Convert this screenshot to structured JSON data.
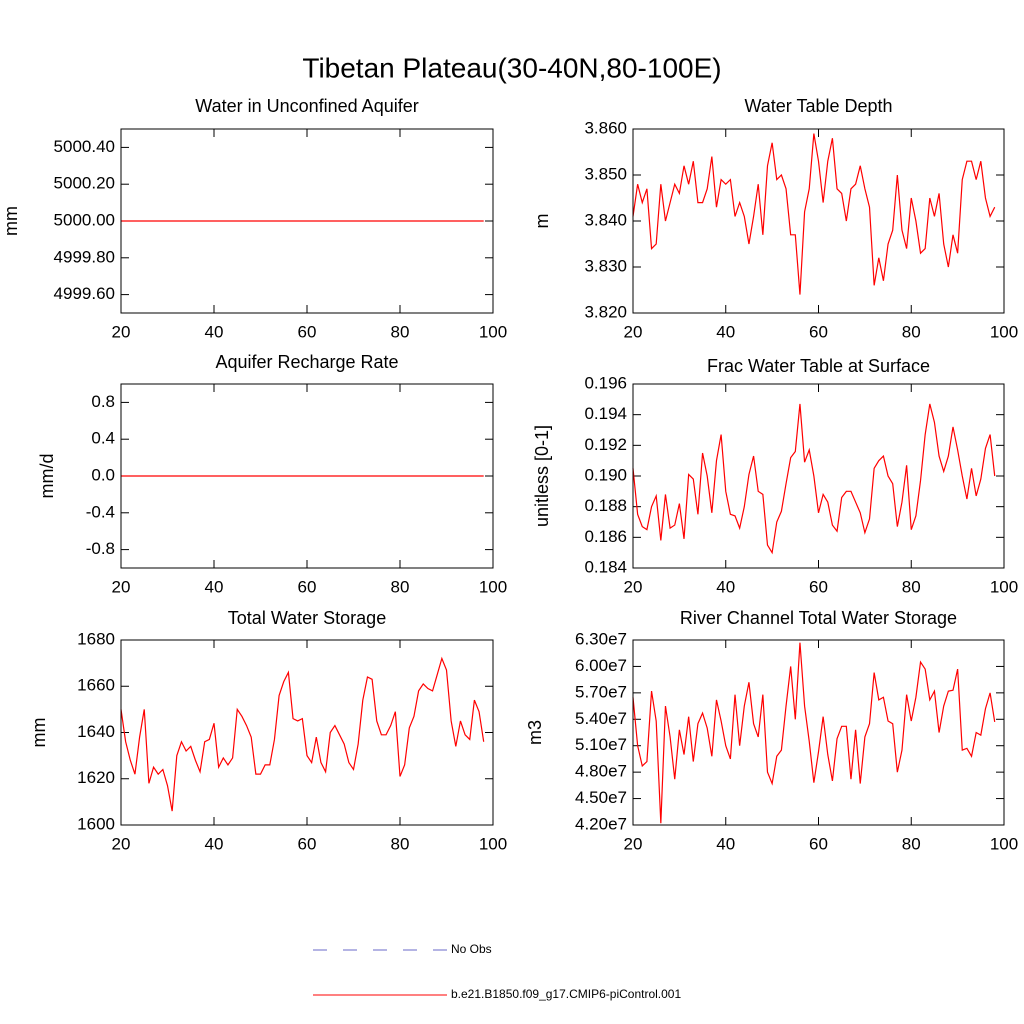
{
  "title": "Tibetan Plateau(30-40N,80-100E)",
  "legend": [
    {
      "name": "No Obs",
      "color": "#6a6ac8",
      "dash": true
    },
    {
      "name": "b.e21.B1850.f09_g17.CMIP6-piControl.001",
      "color": "#ff0000",
      "dash": false
    }
  ],
  "chart_data": [
    {
      "type": "line",
      "title": "Water in Unconfined Aquifer",
      "ylabel": "mm",
      "x": [
        20,
        21,
        22,
        23,
        24,
        25,
        26,
        27,
        28,
        29,
        30,
        31,
        32,
        33,
        34,
        35,
        36,
        37,
        38,
        39,
        40,
        41,
        42,
        43,
        44,
        45,
        46,
        47,
        48,
        49,
        50,
        51,
        52,
        53,
        54,
        55,
        56,
        57,
        58,
        59,
        60,
        61,
        62,
        63,
        64,
        65,
        66,
        67,
        68,
        69,
        70,
        71,
        72,
        73,
        74,
        75,
        76,
        77,
        78,
        79,
        80,
        81,
        82,
        83,
        84,
        85,
        86,
        87,
        88,
        89,
        90,
        91,
        92,
        93,
        94,
        95,
        96,
        97,
        98
      ],
      "series": [
        {
          "color": "#ff0000",
          "values": [
            5000,
            5000,
            5000,
            5000,
            5000,
            5000,
            5000,
            5000,
            5000,
            5000,
            5000,
            5000,
            5000,
            5000,
            5000,
            5000,
            5000,
            5000,
            5000,
            5000,
            5000,
            5000,
            5000,
            5000,
            5000,
            5000,
            5000,
            5000,
            5000,
            5000,
            5000,
            5000,
            5000,
            5000,
            5000,
            5000,
            5000,
            5000,
            5000,
            5000,
            5000,
            5000,
            5000,
            5000,
            5000,
            5000,
            5000,
            5000,
            5000,
            5000,
            5000,
            5000,
            5000,
            5000,
            5000,
            5000,
            5000,
            5000,
            5000,
            5000,
            5000,
            5000,
            5000,
            5000,
            5000,
            5000,
            5000,
            5000,
            5000,
            5000,
            5000,
            5000,
            5000,
            5000,
            5000,
            5000,
            5000,
            5000,
            5000
          ]
        }
      ],
      "xlim": [
        20,
        100
      ],
      "xticks": [
        20,
        40,
        60,
        80,
        100
      ],
      "ylim": [
        4999.5,
        5000.5
      ],
      "yticks": [
        {
          "value": 4999.6,
          "label": "4999.60"
        },
        {
          "value": 4999.8,
          "label": "4999.80"
        },
        {
          "value": 5000,
          "label": "5000.00"
        },
        {
          "value": 5000.2,
          "label": "5000.20"
        },
        {
          "value": 5000.4,
          "label": "5000.40"
        }
      ]
    },
    {
      "type": "line",
      "title": "Water Table Depth",
      "ylabel": "m",
      "x": [
        20,
        21,
        22,
        23,
        24,
        25,
        26,
        27,
        28,
        29,
        30,
        31,
        32,
        33,
        34,
        35,
        36,
        37,
        38,
        39,
        40,
        41,
        42,
        43,
        44,
        45,
        46,
        47,
        48,
        49,
        50,
        51,
        52,
        53,
        54,
        55,
        56,
        57,
        58,
        59,
        60,
        61,
        62,
        63,
        64,
        65,
        66,
        67,
        68,
        69,
        70,
        71,
        72,
        73,
        74,
        75,
        76,
        77,
        78,
        79,
        80,
        81,
        82,
        83,
        84,
        85,
        86,
        87,
        88,
        89,
        90,
        91,
        92,
        93,
        94,
        95,
        96,
        97,
        98
      ],
      "series": [
        {
          "color": "#ff0000",
          "values": [
            3.841,
            3.848,
            3.844,
            3.847,
            3.834,
            3.835,
            3.848,
            3.84,
            3.844,
            3.848,
            3.846,
            3.852,
            3.848,
            3.853,
            3.844,
            3.844,
            3.847,
            3.854,
            3.843,
            3.849,
            3.848,
            3.849,
            3.841,
            3.844,
            3.841,
            3.835,
            3.841,
            3.848,
            3.837,
            3.852,
            3.857,
            3.849,
            3.85,
            3.847,
            3.837,
            3.837,
            3.824,
            3.842,
            3.847,
            3.859,
            3.853,
            3.844,
            3.853,
            3.858,
            3.847,
            3.846,
            3.84,
            3.847,
            3.848,
            3.852,
            3.847,
            3.843,
            3.826,
            3.832,
            3.827,
            3.835,
            3.838,
            3.85,
            3.838,
            3.834,
            3.845,
            3.84,
            3.833,
            3.834,
            3.845,
            3.841,
            3.846,
            3.835,
            3.83,
            3.837,
            3.833,
            3.849,
            3.853,
            3.853,
            3.849,
            3.853,
            3.845,
            3.841,
            3.843
          ]
        }
      ],
      "xlim": [
        20,
        100
      ],
      "xticks": [
        20,
        40,
        60,
        80,
        100
      ],
      "ylim": [
        3.82,
        3.86
      ],
      "yticks": [
        {
          "value": 3.82,
          "label": "3.820"
        },
        {
          "value": 3.83,
          "label": "3.830"
        },
        {
          "value": 3.84,
          "label": "3.840"
        },
        {
          "value": 3.85,
          "label": "3.850"
        },
        {
          "value": 3.86,
          "label": "3.860"
        }
      ]
    },
    {
      "type": "line",
      "title": "Aquifer Recharge Rate",
      "ylabel": "mm/d",
      "x": [
        20,
        21,
        22,
        23,
        24,
        25,
        26,
        27,
        28,
        29,
        30,
        31,
        32,
        33,
        34,
        35,
        36,
        37,
        38,
        39,
        40,
        41,
        42,
        43,
        44,
        45,
        46,
        47,
        48,
        49,
        50,
        51,
        52,
        53,
        54,
        55,
        56,
        57,
        58,
        59,
        60,
        61,
        62,
        63,
        64,
        65,
        66,
        67,
        68,
        69,
        70,
        71,
        72,
        73,
        74,
        75,
        76,
        77,
        78,
        79,
        80,
        81,
        82,
        83,
        84,
        85,
        86,
        87,
        88,
        89,
        90,
        91,
        92,
        93,
        94,
        95,
        96,
        97,
        98
      ],
      "series": [
        {
          "color": "#ff0000",
          "values": [
            0,
            0,
            0,
            0,
            0,
            0,
            0,
            0,
            0,
            0,
            0,
            0,
            0,
            0,
            0,
            0,
            0,
            0,
            0,
            0,
            0,
            0,
            0,
            0,
            0,
            0,
            0,
            0,
            0,
            0,
            0,
            0,
            0,
            0,
            0,
            0,
            0,
            0,
            0,
            0,
            0,
            0,
            0,
            0,
            0,
            0,
            0,
            0,
            0,
            0,
            0,
            0,
            0,
            0,
            0,
            0,
            0,
            0,
            0,
            0,
            0,
            0,
            0,
            0,
            0,
            0,
            0,
            0,
            0,
            0,
            0,
            0,
            0,
            0,
            0,
            0,
            0,
            0,
            0
          ]
        }
      ],
      "xlim": [
        20,
        100
      ],
      "xticks": [
        20,
        40,
        60,
        80,
        100
      ],
      "ylim": [
        -1,
        1
      ],
      "yticks": [
        -0.8,
        -0.4,
        {
          "value": 0,
          "label": "0.0"
        },
        0.4,
        0.8
      ]
    },
    {
      "type": "line",
      "title": "Frac Water Table at Surface",
      "ylabel": "unitless [0-1]",
      "x": [
        20,
        21,
        22,
        23,
        24,
        25,
        26,
        27,
        28,
        29,
        30,
        31,
        32,
        33,
        34,
        35,
        36,
        37,
        38,
        39,
        40,
        41,
        42,
        43,
        44,
        45,
        46,
        47,
        48,
        49,
        50,
        51,
        52,
        53,
        54,
        55,
        56,
        57,
        58,
        59,
        60,
        61,
        62,
        63,
        64,
        65,
        66,
        67,
        68,
        69,
        70,
        71,
        72,
        73,
        74,
        75,
        76,
        77,
        78,
        79,
        80,
        81,
        82,
        83,
        84,
        85,
        86,
        87,
        88,
        89,
        90,
        91,
        92,
        93,
        94,
        95,
        96,
        97,
        98
      ],
      "series": [
        {
          "color": "#ff0000",
          "values": [
            0.1905,
            0.1875,
            0.1867,
            0.1865,
            0.188,
            0.1887,
            0.1858,
            0.1888,
            0.1866,
            0.1868,
            0.1882,
            0.1859,
            0.1901,
            0.1898,
            0.1875,
            0.1915,
            0.19,
            0.1876,
            0.191,
            0.1927,
            0.189,
            0.1875,
            0.1874,
            0.1866,
            0.188,
            0.1901,
            0.1913,
            0.189,
            0.1888,
            0.1855,
            0.185,
            0.187,
            0.1877,
            0.1895,
            0.1912,
            0.1916,
            0.1947,
            0.1909,
            0.1917,
            0.19,
            0.1876,
            0.1888,
            0.1883,
            0.1868,
            0.1864,
            0.1886,
            0.189,
            0.189,
            0.1883,
            0.1876,
            0.1863,
            0.1872,
            0.1905,
            0.191,
            0.1913,
            0.19,
            0.1895,
            0.1867,
            0.1883,
            0.1907,
            0.1865,
            0.1874,
            0.1897,
            0.1927,
            0.1947,
            0.1935,
            0.1913,
            0.1903,
            0.1913,
            0.1932,
            0.1917,
            0.19,
            0.1885,
            0.1905,
            0.1887,
            0.1898,
            0.1918,
            0.1927,
            0.19
          ]
        }
      ],
      "xlim": [
        20,
        100
      ],
      "xticks": [
        20,
        40,
        60,
        80,
        100
      ],
      "ylim": [
        0.184,
        0.196
      ],
      "yticks": [
        0.184,
        0.186,
        0.188,
        {
          "value": 0.19,
          "label": "0.190"
        },
        0.192,
        0.194,
        0.196
      ]
    },
    {
      "type": "line",
      "title": "Total Water Storage",
      "ylabel": "mm",
      "x": [
        20,
        21,
        22,
        23,
        24,
        25,
        26,
        27,
        28,
        29,
        30,
        31,
        32,
        33,
        34,
        35,
        36,
        37,
        38,
        39,
        40,
        41,
        42,
        43,
        44,
        45,
        46,
        47,
        48,
        49,
        50,
        51,
        52,
        53,
        54,
        55,
        56,
        57,
        58,
        59,
        60,
        61,
        62,
        63,
        64,
        65,
        66,
        67,
        68,
        69,
        70,
        71,
        72,
        73,
        74,
        75,
        76,
        77,
        78,
        79,
        80,
        81,
        82,
        83,
        84,
        85,
        86,
        87,
        88,
        89,
        90,
        91,
        92,
        93,
        94,
        95,
        96,
        97,
        98
      ],
      "series": [
        {
          "color": "#ff0000",
          "values": [
            1650,
            1636,
            1628,
            1622,
            1638,
            1650,
            1618,
            1625,
            1622,
            1624,
            1617,
            1606,
            1630,
            1636,
            1632,
            1634,
            1628,
            1623,
            1636,
            1637,
            1644,
            1625,
            1629,
            1626,
            1629,
            1650,
            1647,
            1643,
            1638,
            1622,
            1622,
            1626,
            1626,
            1637,
            1656,
            1662,
            1666,
            1646,
            1645,
            1646,
            1630,
            1627,
            1638,
            1627,
            1623,
            1640,
            1643,
            1639,
            1635,
            1627,
            1624,
            1635,
            1654,
            1664,
            1663,
            1645,
            1639,
            1639,
            1643,
            1649,
            1621,
            1626,
            1642,
            1647,
            1658,
            1661,
            1659,
            1658,
            1665,
            1672,
            1667,
            1645,
            1634,
            1645,
            1639,
            1637,
            1654,
            1649,
            1636
          ]
        }
      ],
      "xlim": [
        20,
        100
      ],
      "xticks": [
        20,
        40,
        60,
        80,
        100
      ],
      "ylim": [
        1600,
        1680
      ],
      "yticks": [
        1600,
        1620,
        1640,
        1660,
        1680
      ]
    },
    {
      "type": "line",
      "title": "River Channel Total Water Storage",
      "ylabel": "m3",
      "x": [
        20,
        21,
        22,
        23,
        24,
        25,
        26,
        27,
        28,
        29,
        30,
        31,
        32,
        33,
        34,
        35,
        36,
        37,
        38,
        39,
        40,
        41,
        42,
        43,
        44,
        45,
        46,
        47,
        48,
        49,
        50,
        51,
        52,
        53,
        54,
        55,
        56,
        57,
        58,
        59,
        60,
        61,
        62,
        63,
        64,
        65,
        66,
        67,
        68,
        69,
        70,
        71,
        72,
        73,
        74,
        75,
        76,
        77,
        78,
        79,
        80,
        81,
        82,
        83,
        84,
        85,
        86,
        87,
        88,
        89,
        90,
        91,
        92,
        93,
        94,
        95,
        96,
        97,
        98
      ],
      "series": [
        {
          "color": "#ff0000",
          "values": [
            56500000,
            51000000,
            48700000,
            49200000,
            57200000,
            53800000,
            42200000,
            55500000,
            52000000,
            47200000,
            52800000,
            50000000,
            54300000,
            49200000,
            53500000,
            54700000,
            53000000,
            49800000,
            56200000,
            53800000,
            51000000,
            49500000,
            56800000,
            51000000,
            55500000,
            58200000,
            53500000,
            52000000,
            56800000,
            48000000,
            46700000,
            49800000,
            50500000,
            55500000,
            60000000,
            54000000,
            62700000,
            55500000,
            51500000,
            46800000,
            50300000,
            54300000,
            50000000,
            47000000,
            51800000,
            53200000,
            53200000,
            47200000,
            52800000,
            46700000,
            52000000,
            53500000,
            59300000,
            56200000,
            56500000,
            53800000,
            53500000,
            48000000,
            50500000,
            56800000,
            53800000,
            56500000,
            60500000,
            59700000,
            56200000,
            57200000,
            52500000,
            55500000,
            57200000,
            57300000,
            59700000,
            50500000,
            50700000,
            49800000,
            52500000,
            52200000,
            55200000,
            57000000,
            53700000
          ]
        }
      ],
      "xlim": [
        20,
        100
      ],
      "xticks": [
        20,
        40,
        60,
        80,
        100
      ],
      "ylim": [
        42000000,
        63000000
      ],
      "yticks": [
        {
          "value": 42000000,
          "label": "4.20e7"
        },
        {
          "value": 45000000,
          "label": "4.50e7"
        },
        {
          "value": 48000000,
          "label": "4.80e7"
        },
        {
          "value": 51000000,
          "label": "5.10e7"
        },
        {
          "value": 54000000,
          "label": "5.40e7"
        },
        {
          "value": 57000000,
          "label": "5.70e7"
        },
        {
          "value": 60000000,
          "label": "6.00e7"
        },
        {
          "value": 63000000,
          "label": "6.30e7"
        }
      ]
    }
  ]
}
